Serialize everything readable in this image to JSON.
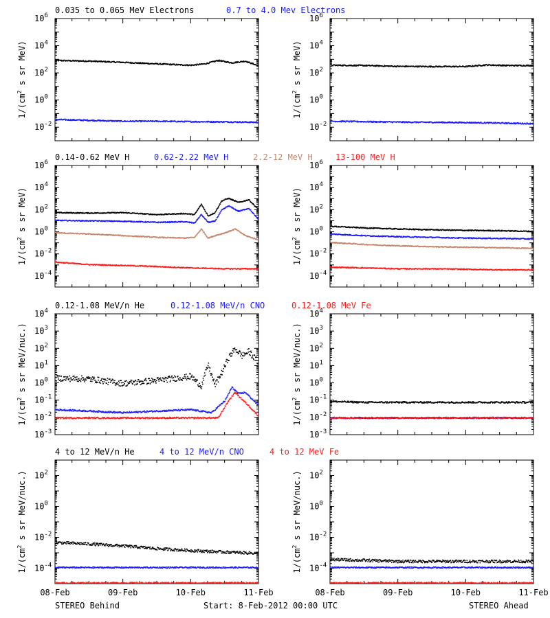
{
  "colors": {
    "black": "#000000",
    "blue": "#1a1aff",
    "tan": "#c4876c",
    "red": "#ff1a1a"
  },
  "footer": {
    "left": "STEREO Behind",
    "center": "Start:  8-Feb-2012 00:00 UTC",
    "right": "STEREO Ahead"
  },
  "x_ticks": [
    "08-Feb",
    "09-Feb",
    "10-Feb",
    "11-Feb"
  ],
  "chart_data": [
    {
      "type": "scatter",
      "panel": "behind",
      "row": "electrons",
      "title": "0.035 to 0.065 MeV Electrons    0.7 to 4.0 Mev Electrons",
      "ylabel": "1/(cm2 s sr MeV)",
      "yscale": "log",
      "ylim": [
        0.001,
        1000000
      ],
      "yticks": [
        0.01,
        1,
        100,
        10000,
        1000000
      ],
      "x_range_days": [
        0,
        3
      ],
      "series": [
        {
          "name": "0.035 to 0.065 MeV Electrons",
          "color": "black",
          "x": [
            0,
            0.5,
            1.0,
            1.5,
            2.0,
            2.2,
            2.4,
            2.6,
            2.8,
            3.0
          ],
          "y": [
            900,
            800,
            650,
            500,
            400,
            500,
            900,
            600,
            800,
            350
          ]
        },
        {
          "name": "0.7 to 4.0 Mev Electrons",
          "color": "blue",
          "x": [
            0,
            0.5,
            1.0,
            1.5,
            2.0,
            2.5,
            3.0
          ],
          "y": [
            0.04,
            0.035,
            0.03,
            0.03,
            0.028,
            0.027,
            0.025
          ]
        }
      ]
    },
    {
      "type": "scatter",
      "panel": "ahead",
      "row": "electrons",
      "ylabel": "1/(cm2 s sr MeV)",
      "yscale": "log",
      "ylim": [
        0.001,
        1000000
      ],
      "yticks": [
        0.01,
        1,
        100,
        10000,
        1000000
      ],
      "x_range_days": [
        0,
        3
      ],
      "series": [
        {
          "name": "0.035 to 0.065 MeV Electrons",
          "color": "black",
          "x": [
            0,
            0.5,
            1.0,
            1.5,
            2.0,
            2.3,
            2.6,
            3.0
          ],
          "y": [
            400,
            380,
            330,
            320,
            320,
            420,
            380,
            380
          ]
        },
        {
          "name": "0.7 to 4.0 Mev Electrons",
          "color": "blue",
          "x": [
            0,
            0.5,
            1.0,
            1.5,
            2.0,
            2.5,
            3.0
          ],
          "y": [
            0.03,
            0.028,
            0.026,
            0.025,
            0.024,
            0.022,
            0.02
          ]
        }
      ]
    },
    {
      "type": "scatter",
      "panel": "behind",
      "row": "protons",
      "title": "0.14-0.62 MeV H   0.62-2.22 MeV H   2.2-12 MeV H   13-100 MeV H",
      "ylabel": "1/(cm2 s sr MeV)",
      "yscale": "log",
      "ylim": [
        1e-05,
        1000000
      ],
      "yticks": [
        0.0001,
        0.01,
        1,
        100,
        10000,
        1000000
      ],
      "x_range_days": [
        0,
        3
      ],
      "series": [
        {
          "name": "0.14-0.62 MeV H",
          "color": "black",
          "x": [
            0,
            0.5,
            1.0,
            1.5,
            1.9,
            2.05,
            2.15,
            2.25,
            2.35,
            2.45,
            2.55,
            2.7,
            2.85,
            3.0
          ],
          "y": [
            60,
            55,
            60,
            40,
            50,
            40,
            350,
            30,
            60,
            700,
            1200,
            500,
            900,
            100
          ]
        },
        {
          "name": "0.62-2.22 MeV H",
          "color": "blue",
          "x": [
            0,
            0.5,
            1.0,
            1.5,
            1.9,
            2.05,
            2.15,
            2.25,
            2.35,
            2.45,
            2.55,
            2.7,
            2.85,
            3.0
          ],
          "y": [
            12,
            11,
            10,
            8,
            9,
            7,
            40,
            8,
            10,
            100,
            250,
            80,
            150,
            12
          ]
        },
        {
          "name": "2.2-12 MeV H",
          "color": "tan",
          "x": [
            0,
            0.5,
            1.0,
            1.5,
            1.9,
            2.05,
            2.15,
            2.25,
            2.35,
            2.5,
            2.65,
            2.8,
            3.0
          ],
          "y": [
            0.9,
            0.7,
            0.5,
            0.35,
            0.3,
            0.35,
            2.0,
            0.3,
            0.5,
            0.9,
            2.0,
            0.5,
            0.2
          ]
        },
        {
          "name": "13-100 MeV H",
          "color": "red",
          "x": [
            0,
            0.5,
            1.0,
            1.5,
            2.0,
            2.5,
            3.0
          ],
          "y": [
            0.002,
            0.0012,
            0.001,
            0.0008,
            0.0006,
            0.0005,
            0.0005
          ]
        }
      ]
    },
    {
      "type": "scatter",
      "panel": "ahead",
      "row": "protons",
      "ylabel": "1/(cm2 s sr MeV)",
      "yscale": "log",
      "ylim": [
        1e-05,
        1000000
      ],
      "yticks": [
        0.0001,
        0.01,
        1,
        100,
        10000,
        1000000
      ],
      "x_range_days": [
        0,
        3
      ],
      "series": [
        {
          "name": "0.14-0.62 MeV H",
          "color": "black",
          "x": [
            0,
            0.5,
            1.0,
            1.5,
            2.0,
            2.5,
            3.0
          ],
          "y": [
            3.5,
            2.5,
            2.0,
            1.7,
            1.5,
            1.4,
            1.2
          ]
        },
        {
          "name": "0.62-2.22 MeV H",
          "color": "blue",
          "x": [
            0,
            0.5,
            1.0,
            1.5,
            2.0,
            2.5,
            3.0
          ],
          "y": [
            0.7,
            0.5,
            0.4,
            0.35,
            0.3,
            0.28,
            0.25
          ]
        },
        {
          "name": "2.2-12 MeV H",
          "color": "tan",
          "x": [
            0,
            0.5,
            1.0,
            1.5,
            2.0,
            2.5,
            3.0
          ],
          "y": [
            0.12,
            0.08,
            0.06,
            0.05,
            0.045,
            0.04,
            0.035
          ]
        },
        {
          "name": "13-100 MeV H",
          "color": "red",
          "x": [
            0,
            0.5,
            1.0,
            1.5,
            2.0,
            2.5,
            3.0
          ],
          "y": [
            0.0007,
            0.0006,
            0.0005,
            0.0005,
            0.00045,
            0.0004,
            0.0004
          ]
        }
      ]
    },
    {
      "type": "scatter",
      "panel": "behind",
      "row": "low-energy-ions",
      "title": "0.12-1.08 MeV/n He   0.12-1.08 MeV/n CNO   0.12-1.08 MeV Fe",
      "ylabel": "1/(cm2 s sr MeV/nuc.)",
      "yscale": "log",
      "ylim": [
        0.001,
        10000
      ],
      "yticks": [
        0.001,
        0.01,
        0.1,
        1,
        10,
        100,
        1000,
        10000
      ],
      "x_range_days": [
        0,
        3
      ],
      "series": [
        {
          "name": "0.12-1.08 MeV/n He",
          "color": "black",
          "x": [
            0,
            0.5,
            1.0,
            1.5,
            2.0,
            2.15,
            2.25,
            2.35,
            2.45,
            2.55,
            2.65,
            2.75,
            2.85,
            3.0
          ],
          "y": [
            2.0,
            1.8,
            1.0,
            1.5,
            2.5,
            0.7,
            12,
            0.8,
            4,
            30,
            100,
            40,
            70,
            15
          ]
        },
        {
          "name": "0.12-1.08 MeV/n CNO",
          "color": "blue",
          "x": [
            0,
            0.5,
            1.0,
            1.5,
            2.0,
            2.3,
            2.5,
            2.6,
            2.7,
            2.8,
            3.0
          ],
          "y": [
            0.03,
            0.025,
            0.02,
            0.025,
            0.03,
            0.02,
            0.1,
            0.6,
            0.25,
            0.3,
            0.05
          ]
        },
        {
          "name": "0.12-1.08 MeV Fe",
          "color": "red",
          "x": [
            0,
            0.5,
            1.0,
            1.5,
            2.0,
            2.4,
            2.55,
            2.65,
            2.75,
            2.85,
            3.0
          ],
          "y": [
            0.01,
            0.01,
            0.01,
            0.01,
            0.01,
            0.01,
            0.1,
            0.3,
            0.12,
            0.05,
            0.012
          ]
        }
      ]
    },
    {
      "type": "scatter",
      "panel": "ahead",
      "row": "low-energy-ions",
      "ylabel": "1/(cm2 s sr MeV/nuc.)",
      "yscale": "log",
      "ylim": [
        0.001,
        10000
      ],
      "yticks": [
        0.001,
        0.01,
        0.1,
        1,
        10,
        100,
        1000,
        10000
      ],
      "x_range_days": [
        0,
        3
      ],
      "series": [
        {
          "name": "0.12-1.08 MeV/n He",
          "color": "black",
          "x": [
            0,
            0.5,
            1.0,
            1.5,
            2.0,
            2.5,
            3.0
          ],
          "y": [
            0.09,
            0.08,
            0.08,
            0.08,
            0.08,
            0.08,
            0.08
          ]
        },
        {
          "name": "0.12-1.08 MeV/n CNO",
          "color": "blue",
          "x": [
            0,
            0.5,
            1.0,
            1.5,
            2.0,
            2.5,
            3.0
          ],
          "y": [
            0.01,
            0.01,
            0.01,
            0.01,
            0.01,
            0.01,
            0.01
          ]
        },
        {
          "name": "0.12-1.08 MeV Fe",
          "color": "red",
          "x": [
            0,
            0.5,
            1.0,
            1.5,
            2.0,
            2.5,
            3.0
          ],
          "y": [
            0.01,
            0.01,
            0.01,
            0.01,
            0.01,
            0.01,
            0.01
          ]
        }
      ]
    },
    {
      "type": "scatter",
      "panel": "behind",
      "row": "high-energy-ions",
      "title": "4 to 12 MeV/n He   4 to 12 MeV/n CNO   4 to 12 MeV Fe",
      "ylabel": "1/(cm2 s sr MeV/nuc.)",
      "yscale": "log",
      "ylim": [
        1e-05,
        1000
      ],
      "yticks": [
        0.0001,
        0.01,
        1,
        100
      ],
      "x_range_days": [
        0,
        3
      ],
      "series": [
        {
          "name": "4 to 12 MeV/n He",
          "color": "black",
          "x": [
            0,
            0.5,
            1.0,
            1.5,
            2.0,
            2.5,
            3.0
          ],
          "y": [
            0.005,
            0.004,
            0.003,
            0.002,
            0.0015,
            0.0012,
            0.001
          ]
        },
        {
          "name": "4 to 12 MeV/n CNO",
          "color": "blue",
          "x": [
            0,
            0.5,
            1.0,
            1.5,
            2.0,
            2.5,
            3.0
          ],
          "y": [
            0.00012,
            0.00012,
            0.00012,
            0.00012,
            0.00012,
            0.00012,
            0.00012
          ]
        },
        {
          "name": "4 to 12 MeV Fe",
          "color": "red",
          "x": [
            0,
            0.5,
            1.0,
            1.5,
            2.0,
            2.5,
            3.0
          ],
          "y": [
            1.2e-05,
            1.2e-05,
            1.2e-05,
            1.2e-05,
            1.2e-05,
            1.2e-05,
            1.2e-05
          ]
        }
      ]
    },
    {
      "type": "scatter",
      "panel": "ahead",
      "row": "high-energy-ions",
      "ylabel": "1/(cm2 s sr MeV/nuc.)",
      "yscale": "log",
      "ylim": [
        1e-05,
        1000
      ],
      "yticks": [
        0.0001,
        0.01,
        1,
        100
      ],
      "x_range_days": [
        0,
        3
      ],
      "series": [
        {
          "name": "4 to 12 MeV/n He",
          "color": "black",
          "x": [
            0,
            0.5,
            1.0,
            1.5,
            2.0,
            2.5,
            3.0
          ],
          "y": [
            0.0004,
            0.00035,
            0.0003,
            0.0003,
            0.0003,
            0.0003,
            0.0003
          ]
        },
        {
          "name": "4 to 12 MeV/n CNO",
          "color": "blue",
          "x": [
            0,
            0.5,
            1.0,
            1.5,
            2.0,
            2.5,
            3.0
          ],
          "y": [
            0.00012,
            0.00012,
            0.00012,
            0.00012,
            0.00012,
            0.00012,
            0.00012
          ]
        },
        {
          "name": "4 to 12 MeV Fe",
          "color": "red",
          "x": [
            0,
            0.5,
            1.0,
            1.5,
            2.0,
            2.5,
            3.0
          ],
          "y": [
            1.2e-05,
            1.2e-05,
            1.2e-05,
            1.2e-05,
            1.2e-05,
            1.2e-05,
            1.2e-05
          ]
        }
      ]
    }
  ]
}
